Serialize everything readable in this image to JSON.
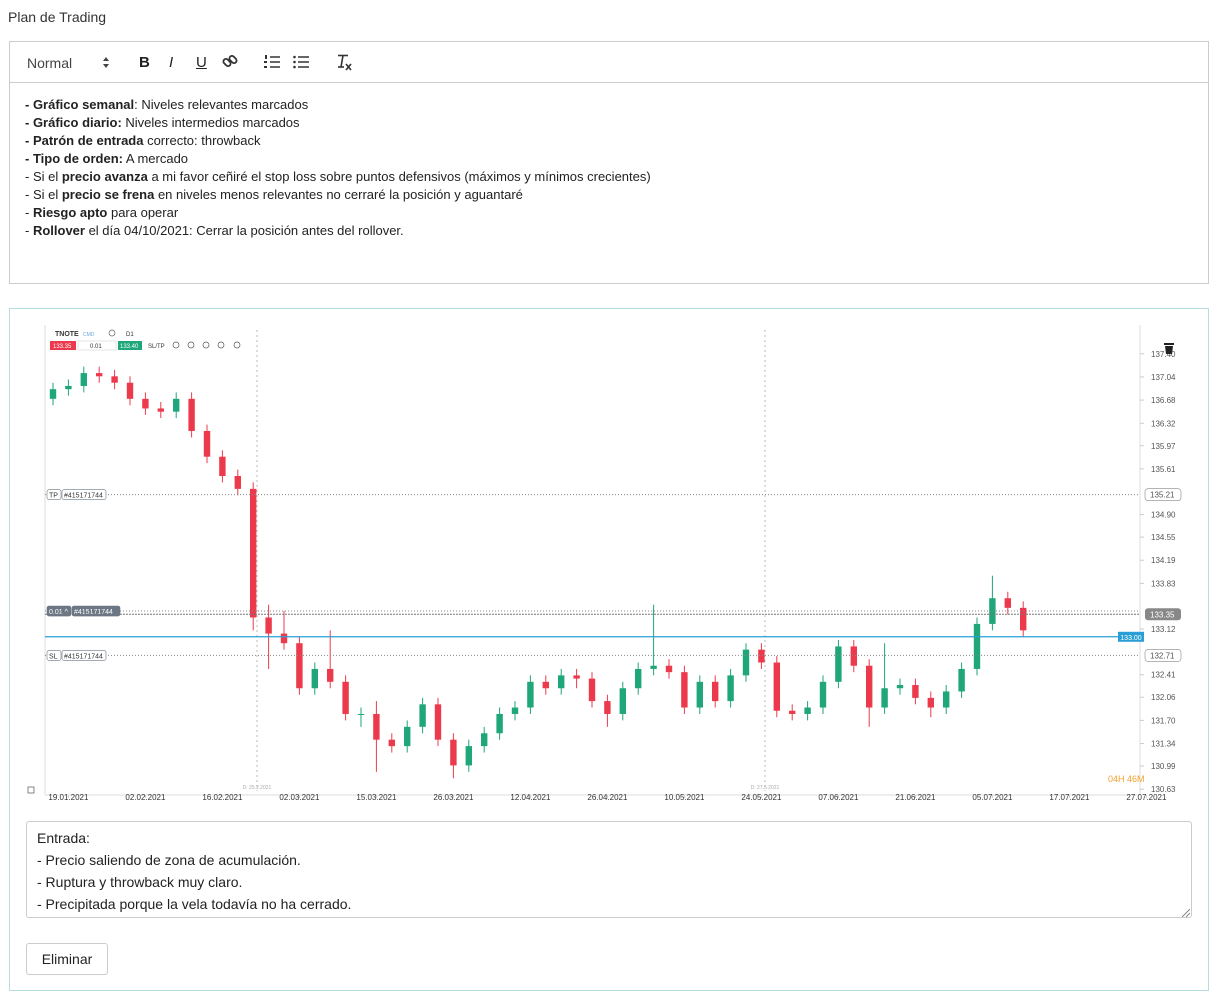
{
  "header": {
    "title": "Plan de Trading"
  },
  "editor": {
    "format": "Normal",
    "buttons": [
      "B",
      "I",
      "U"
    ],
    "lines": [
      [
        {
          "text": "- Gráfico semanal",
          "bold": true
        },
        {
          "text": ": Niveles relevantes marcados",
          "bold": false
        }
      ],
      [
        {
          "text": "- Gráfico diario:",
          "bold": true
        },
        {
          "text": " Niveles intermedios marcados",
          "bold": false
        }
      ],
      [
        {
          "text": "- Patrón de entrada",
          "bold": true
        },
        {
          "text": " correcto: throwback",
          "bold": false
        }
      ],
      [
        {
          "text": "- Tipo de orden:",
          "bold": true
        },
        {
          "text": " A mercado",
          "bold": false
        }
      ],
      [
        {
          "text": "- Si el ",
          "bold": false
        },
        {
          "text": "precio avanza",
          "bold": true
        },
        {
          "text": " a mi favor ceñiré el stop loss sobre puntos defensivos (máximos y mínimos crecientes)",
          "bold": false
        }
      ],
      [
        {
          "text": "- Si el ",
          "bold": false
        },
        {
          "text": "precio se frena",
          "bold": true
        },
        {
          "text": " en niveles menos relevantes no cerraré la posición y aguantaré",
          "bold": false
        }
      ],
      [
        {
          "text": "- ",
          "bold": false
        },
        {
          "text": "Riesgo apto",
          "bold": true
        },
        {
          "text": " para operar",
          "bold": false
        }
      ],
      [
        {
          "text": "- ",
          "bold": false
        },
        {
          "text": "Rollover",
          "bold": true
        },
        {
          "text": " el día 04/10/2021: Cerrar la posición antes del rollover.",
          "bold": false
        }
      ]
    ]
  },
  "chart_data": {
    "type": "candlestick",
    "toolbar": {
      "symbol": "TNOTE",
      "kind": "CMD",
      "timeframe": "D1",
      "bid": "133.35",
      "volume": "0.01",
      "ask": "133.40",
      "sltp": "SL/TP"
    },
    "up_color": "#1fa67a",
    "down_color": "#ec3a4c",
    "grid": false,
    "categories": [
      null,
      "19.01.2021",
      null,
      null,
      null,
      null,
      "02.02.2021",
      null,
      null,
      null,
      null,
      "16.02.2021",
      null,
      null,
      null,
      null,
      "02.03.2021",
      null,
      null,
      null,
      null,
      "15.03.2021",
      null,
      null,
      null,
      null,
      "26.03.2021",
      null,
      null,
      null,
      null,
      "12.04.2021",
      null,
      null,
      null,
      null,
      "26.04.2021",
      null,
      null,
      null,
      null,
      "10.05.2021",
      null,
      null,
      null,
      null,
      "24.05.2021",
      null,
      null,
      null,
      null,
      "07.06.2021",
      null,
      null,
      null,
      null,
      "21.06.2021",
      null,
      null,
      null,
      null,
      "05.07.2021",
      null,
      null,
      null,
      null,
      "17.07.2021",
      null,
      null,
      null,
      null,
      "27.07.2021"
    ],
    "open": [
      136.7,
      136.85,
      136.9,
      137.1,
      137.05,
      136.95,
      136.7,
      136.55,
      136.5,
      136.7,
      136.2,
      135.8,
      135.5,
      135.3,
      133.3,
      133.05,
      132.9,
      132.2,
      132.5,
      132.3,
      131.8,
      131.8,
      131.4,
      131.3,
      131.6,
      131.95,
      131.4,
      131.0,
      131.3,
      131.5,
      131.8,
      131.9,
      132.3,
      132.2,
      132.4,
      132.35,
      132.0,
      131.8,
      132.2,
      132.5,
      132.55,
      132.45,
      131.9,
      132.3,
      132.0,
      132.4,
      132.8,
      132.6,
      131.85,
      131.8,
      131.9,
      132.3,
      132.85,
      132.55,
      131.9,
      132.2,
      132.25,
      132.05,
      131.9,
      132.15,
      132.5,
      133.2,
      133.6,
      133.45,
      null,
      null,
      null,
      null,
      null,
      null,
      null,
      null
    ],
    "high": [
      136.95,
      137.0,
      137.2,
      137.2,
      137.15,
      137.05,
      136.8,
      136.65,
      136.8,
      136.8,
      136.3,
      135.9,
      135.6,
      135.4,
      133.5,
      133.4,
      133.0,
      132.6,
      133.1,
      132.4,
      131.9,
      132.0,
      131.5,
      131.7,
      132.05,
      132.05,
      131.5,
      131.4,
      131.6,
      131.9,
      132.0,
      132.4,
      132.4,
      132.5,
      132.5,
      132.45,
      132.1,
      132.3,
      132.6,
      133.5,
      132.65,
      132.55,
      132.4,
      132.4,
      132.5,
      132.9,
      132.9,
      132.7,
      131.95,
      132.0,
      132.4,
      132.95,
      132.95,
      132.65,
      132.9,
      132.35,
      132.35,
      132.15,
      132.25,
      132.6,
      133.3,
      133.95,
      133.7,
      133.55,
      null,
      null,
      null,
      null,
      null,
      null,
      null,
      null
    ],
    "low": [
      136.6,
      136.75,
      136.8,
      136.95,
      136.85,
      136.6,
      136.45,
      136.4,
      136.4,
      136.1,
      135.7,
      135.4,
      135.2,
      133.1,
      132.5,
      132.8,
      132.1,
      132.1,
      132.2,
      131.7,
      131.6,
      130.9,
      131.2,
      131.2,
      131.5,
      131.3,
      130.8,
      130.9,
      131.2,
      131.4,
      131.7,
      131.8,
      132.1,
      132.1,
      132.2,
      131.9,
      131.6,
      131.7,
      132.1,
      132.4,
      132.35,
      131.8,
      131.8,
      131.9,
      131.9,
      132.3,
      132.5,
      131.75,
      131.7,
      131.7,
      131.8,
      132.2,
      132.45,
      131.6,
      131.8,
      132.1,
      131.95,
      131.75,
      131.8,
      132.05,
      132.4,
      133.1,
      133.35,
      133.0,
      null,
      null,
      null,
      null,
      null,
      null,
      null,
      null
    ],
    "close": [
      136.85,
      136.9,
      137.1,
      137.05,
      136.95,
      136.7,
      136.55,
      136.5,
      136.7,
      136.2,
      135.8,
      135.5,
      135.3,
      133.3,
      133.05,
      132.9,
      132.2,
      132.5,
      132.3,
      131.8,
      131.8,
      131.4,
      131.3,
      131.6,
      131.95,
      131.4,
      131.0,
      131.3,
      131.5,
      131.8,
      131.9,
      132.3,
      132.2,
      132.4,
      132.35,
      132.0,
      131.8,
      132.2,
      132.5,
      132.55,
      132.45,
      131.9,
      132.3,
      132.0,
      132.4,
      132.8,
      132.6,
      131.85,
      131.8,
      131.9,
      132.3,
      132.85,
      132.55,
      131.9,
      132.2,
      132.25,
      132.05,
      131.9,
      132.15,
      132.5,
      133.2,
      133.6,
      133.45,
      133.1,
      null,
      null,
      null,
      null,
      null,
      null,
      null,
      null
    ],
    "ylim": [
      130.54,
      137.77
    ],
    "yticks": [
      {
        "value": 137.4,
        "label": "137.40"
      },
      137.04,
      136.68,
      136.32,
      135.97,
      135.61,
      {
        "value": 134.9,
        "label": "134.90"
      },
      134.55,
      134.19,
      133.83,
      133.12,
      132.41,
      132.06,
      {
        "value": 131.7,
        "label": "131.70"
      },
      131.34,
      130.99,
      130.63
    ],
    "levels": [
      {
        "tag": "TP",
        "ticket": "#415171744",
        "value": 135.21,
        "right_label": true,
        "entry": false
      },
      {
        "tag": "0.01 ^",
        "ticket": "#415171744",
        "value": 133.4,
        "right_label": false,
        "entry": true
      },
      {
        "tag": "SL",
        "ticket": "#415171744",
        "value": 132.71,
        "right_label": true,
        "entry": false
      }
    ],
    "bid_line": 133.35,
    "alert_line": {
      "value": 133,
      "label": "133.00",
      "color": "#2a9fd6"
    },
    "markers": [
      "D: 25.2.2021",
      "D: 27.5.2021"
    ],
    "timer": "04H 46M"
  },
  "notes": {
    "lines": [
      "Entrada:",
      "- Precio saliendo de zona de acumulación.",
      "- Ruptura y throwback muy claro.",
      "- Precipitada porque la vela todavía no ha cerrado."
    ]
  },
  "actions": {
    "delete": "Eliminar"
  }
}
